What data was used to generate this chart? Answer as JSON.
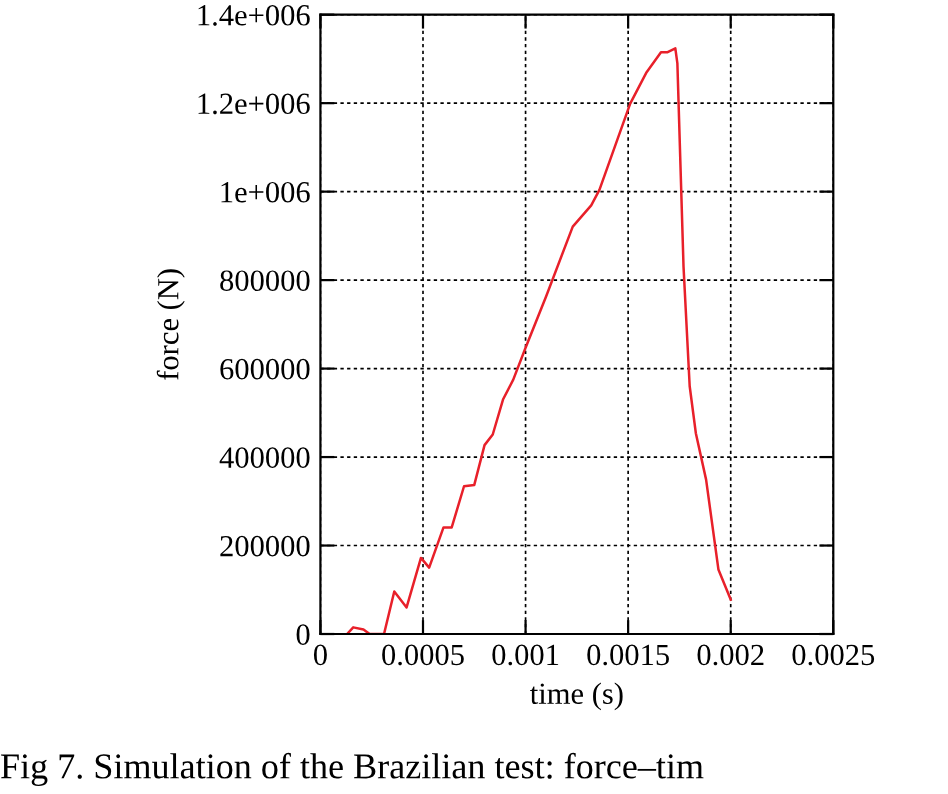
{
  "chart_data": {
    "type": "line",
    "xlabel": "time (s)",
    "ylabel": "force (N)",
    "annotations": [
      "Fig 7. Simulation of the Brazilian test: force–tim"
    ],
    "x": [
      0.00013,
      0.00016,
      0.00021,
      0.00024,
      0.00031,
      0.00036,
      0.00042,
      0.00049,
      0.00053,
      0.0006,
      0.00064,
      0.0007,
      0.00075,
      0.0008,
      0.00084,
      0.00089,
      0.00094,
      0.001,
      0.0011,
      0.00123,
      0.00132,
      0.00136,
      0.00151,
      0.00159,
      0.00166,
      0.00169,
      0.00173,
      0.00174,
      0.00177,
      0.0018,
      0.00183,
      0.00188,
      0.00194,
      0.002
    ],
    "series": [
      {
        "color": "#e8202a",
        "values": [
          0,
          15000,
          10000,
          0,
          0,
          96000,
          60000,
          172000,
          150000,
          241000,
          241000,
          334000,
          337000,
          427000,
          451000,
          530000,
          575000,
          647000,
          763000,
          921000,
          969000,
          1004000,
          1199000,
          1270000,
          1315000,
          1315000,
          1324000,
          1290000,
          830000,
          560000,
          454000,
          349000,
          146000,
          78000
        ]
      }
    ],
    "xlim": [
      0,
      0.0025
    ],
    "xticks": [
      0,
      0.0005,
      0.001,
      0.0015,
      0.002,
      0.0025
    ],
    "ylim": [
      0,
      1400000
    ],
    "yticks": [
      0,
      200000,
      400000,
      600000,
      800000,
      {
        "value": 1000000,
        "label": "1e+006"
      },
      {
        "value": 1200000,
        "label": "1.2e+006"
      },
      {
        "value": 1400000,
        "label": "1.4e+006"
      }
    ],
    "grid": true,
    "legend": false,
    "marker": "none",
    "line_style": "solid"
  }
}
